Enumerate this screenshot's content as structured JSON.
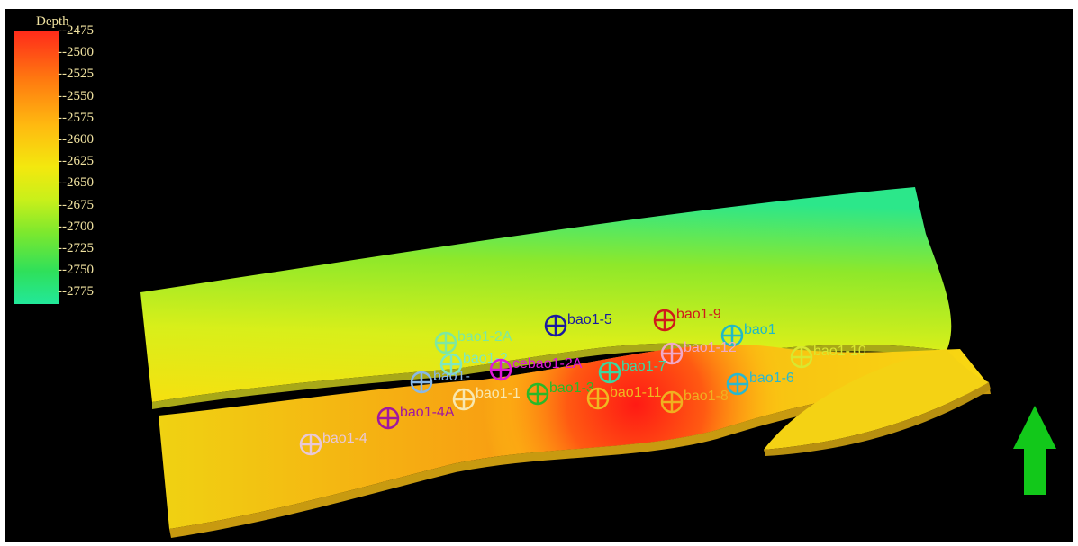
{
  "legend": {
    "title": "Depth",
    "ticks": [
      "-2475",
      "-2500",
      "-2525",
      "-2550",
      "-2575",
      "-2600",
      "-2625",
      "-2650",
      "-2675",
      "-2700",
      "-2725",
      "-2750",
      "-2775"
    ]
  },
  "colors": {
    "deep": "#22e89a",
    "mid": "#f3e80e",
    "shallow": "#ff2a1a",
    "arrow": "#12c81a"
  },
  "north_arrow_icon": "up-arrow-icon",
  "wells": [
    {
      "label": "bao1-5",
      "color": "#1a1aa0"
    },
    {
      "label": "bao1-9",
      "color": "#d01a1a"
    },
    {
      "label": "bao1",
      "color": "#20b8c8"
    },
    {
      "label": "bao1-2A",
      "color": "#7ee8a0"
    },
    {
      "label": "bao1-12",
      "color": "#f0a8c8"
    },
    {
      "label": "bao1-10",
      "color": "#d8e830"
    },
    {
      "label": "bao1-2",
      "color": "#7ee8c0"
    },
    {
      "label": "cebao1-2A",
      "color": "#e018d8"
    },
    {
      "label": "bao1-7",
      "color": "#3cd8a0"
    },
    {
      "label": "bao1-",
      "color": "#88b8e8"
    },
    {
      "label": "bao1-6",
      "color": "#28b8d0"
    },
    {
      "label": "bao1-1",
      "color": "#f8e8b0"
    },
    {
      "label": "bao1-3",
      "color": "#28b828"
    },
    {
      "label": "bao1-11",
      "color": "#f0b820"
    },
    {
      "label": "bao1-8",
      "color": "#f0b020"
    },
    {
      "label": "bao1-4A",
      "color": "#a018a0"
    },
    {
      "label": "bao1-4",
      "color": "#e8c8d8"
    }
  ]
}
